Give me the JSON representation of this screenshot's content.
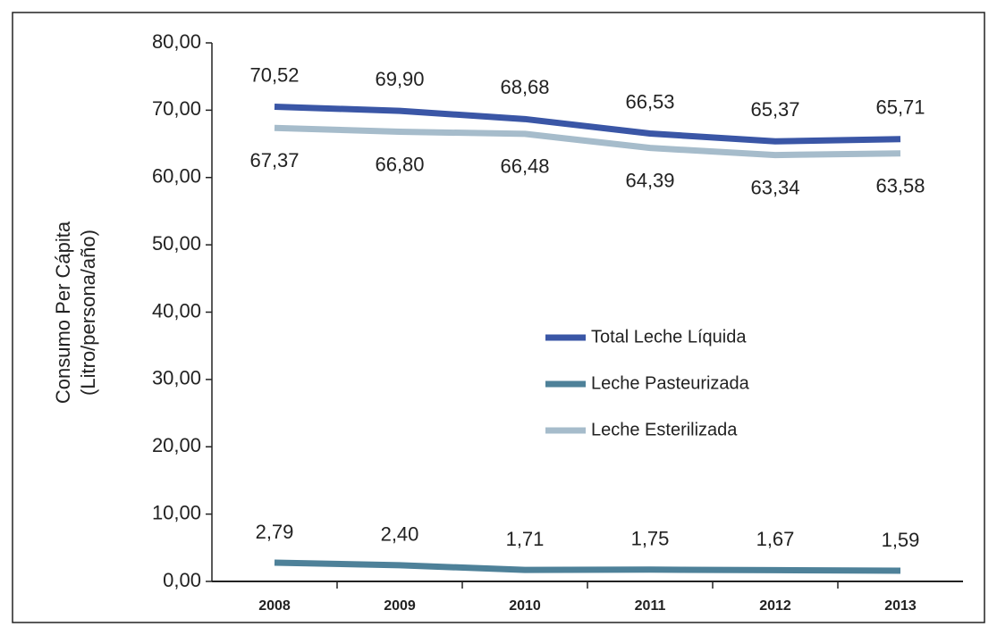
{
  "chart_data": {
    "type": "line",
    "ylabel": [
      "Consumo Per Cápita",
      "(Litro/persona/año)"
    ],
    "categories": [
      "2008",
      "2009",
      "2010",
      "2011",
      "2012",
      "2013"
    ],
    "series": [
      {
        "name": "Total Leche Líquida",
        "color": "#3a56a6",
        "values": [
          70.52,
          69.9,
          68.68,
          66.53,
          65.37,
          65.71
        ],
        "value_labels": [
          "70,52",
          "69,90",
          "68,68",
          "66,53",
          "65,37",
          "65,71"
        ]
      },
      {
        "name": "Leche Pasteurizada",
        "color": "#4e8199",
        "values": [
          2.79,
          2.4,
          1.71,
          1.75,
          1.67,
          1.59
        ],
        "value_labels": [
          "2,79",
          "2,40",
          "1,71",
          "1,75",
          "1,67",
          "1,59"
        ]
      },
      {
        "name": "Leche Esterilizada",
        "color": "#a6bccb",
        "values": [
          67.37,
          66.8,
          66.48,
          64.39,
          63.34,
          63.58
        ],
        "value_labels": [
          "67,37",
          "66,80",
          "66,48",
          "64,39",
          "63,34",
          "63,58"
        ]
      }
    ],
    "ylim": [
      0,
      80
    ],
    "yticks": [
      {
        "value": 0,
        "label": "0,00"
      },
      {
        "value": 10,
        "label": "10,00"
      },
      {
        "value": 20,
        "label": "20,00"
      },
      {
        "value": 30,
        "label": "30,00"
      },
      {
        "value": 40,
        "label": "40,00"
      },
      {
        "value": 50,
        "label": "50,00"
      },
      {
        "value": 60,
        "label": "60,00"
      },
      {
        "value": 70,
        "label": "70,00"
      },
      {
        "value": 80,
        "label": "80,00"
      }
    ],
    "grid": false
  }
}
